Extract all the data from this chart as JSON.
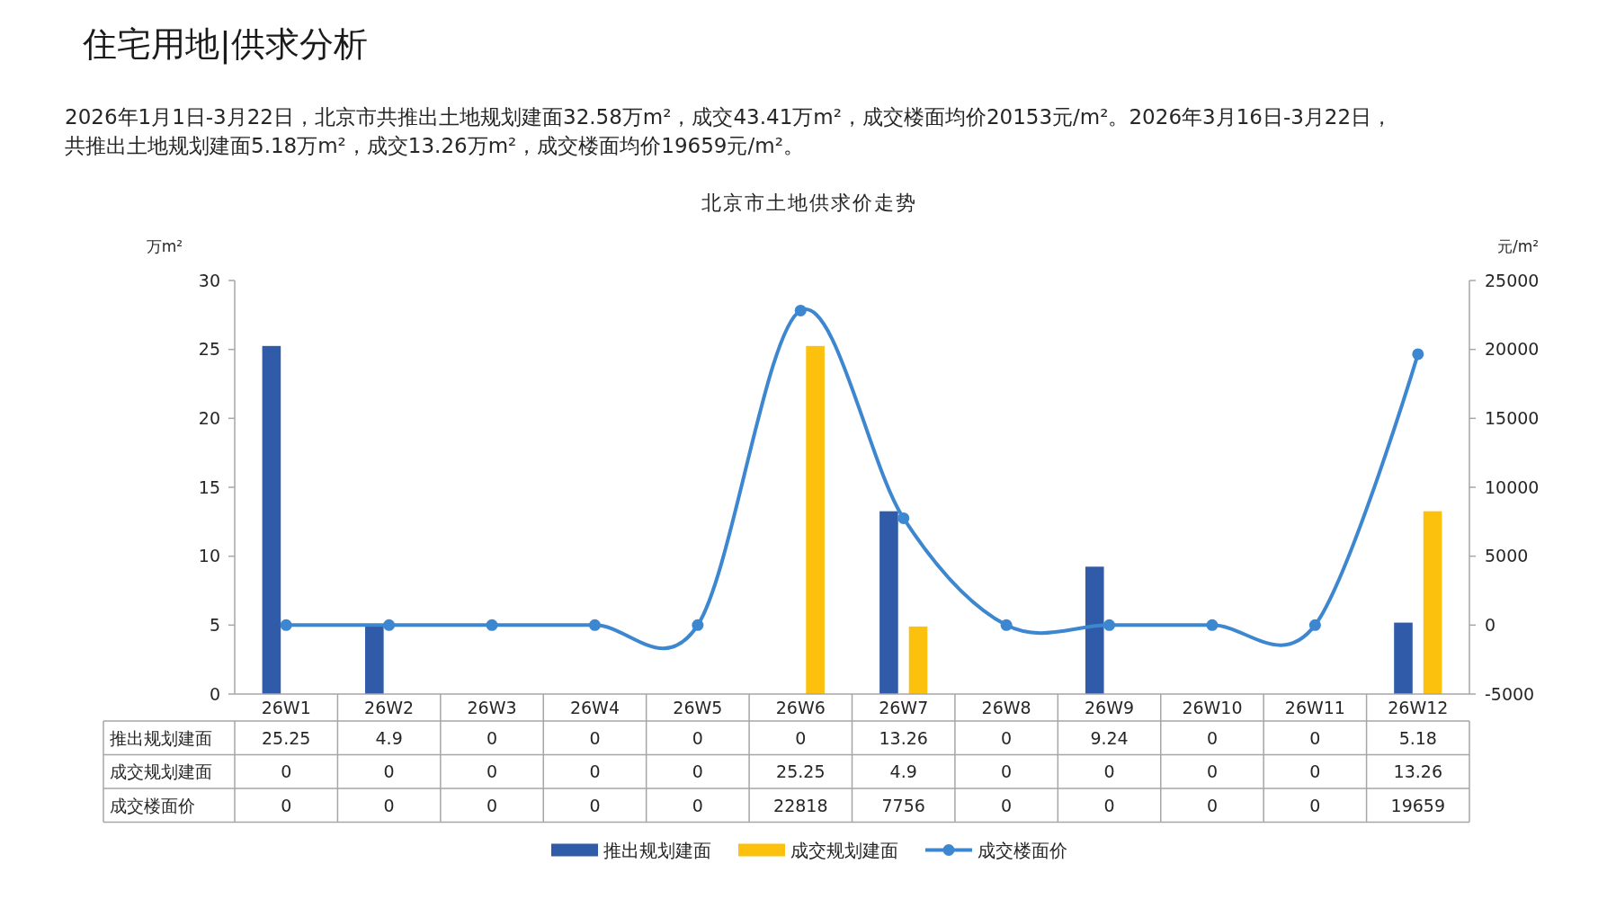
{
  "chart_data": {
    "type": "bar",
    "title": "北京市土地供求价走势",
    "subtitle": "2026年1月1日-3月22日，北京市共推出土地规划建面32.58万m²，成交43.41万m²，成交楼面均价20153元/m²。2026年3月16日-3月22日，共推出土地规划建面5.18万m²，成交13.26万m²，成交楼面均价19659元/m²。",
    "annotations": [
      "住宅用地|供求分析"
    ],
    "ylabel": "万m²",
    "y2label": "元/m²",
    "categories": [
      "26W1",
      "26W2",
      "26W3",
      "26W4",
      "26W5",
      "26W6",
      "26W7",
      "26W8",
      "26W9",
      "26W10",
      "26W11",
      "26W12"
    ],
    "series": [
      {
        "name": "推出规划建面",
        "color": "#2f5ba8",
        "values": [
          25.25,
          4.9,
          0,
          0,
          0,
          0,
          13.26,
          0,
          9.24,
          0,
          0,
          5.18
        ]
      },
      {
        "name": "成交规划建面",
        "color": "#fbc10c",
        "values": [
          0,
          0,
          0,
          0,
          0,
          25.25,
          4.9,
          0,
          0,
          0,
          0,
          13.26
        ]
      },
      {
        "name": "成交楼面价",
        "type": "line",
        "axis": "y2",
        "marker": "circle",
        "color": "#3d87d0",
        "values": [
          0,
          0,
          0,
          0,
          0,
          22818,
          7756,
          0,
          0,
          0,
          0,
          19659
        ]
      }
    ],
    "ylim": [
      0,
      30
    ],
    "yticks": [
      0,
      5,
      10,
      15,
      20,
      25,
      30
    ],
    "y2lim": [
      -5000,
      25000
    ],
    "y2ticks": [
      -5000,
      0,
      5000,
      10000,
      15000,
      20000,
      25000
    ],
    "data_labels": true,
    "legend": "bottom"
  }
}
